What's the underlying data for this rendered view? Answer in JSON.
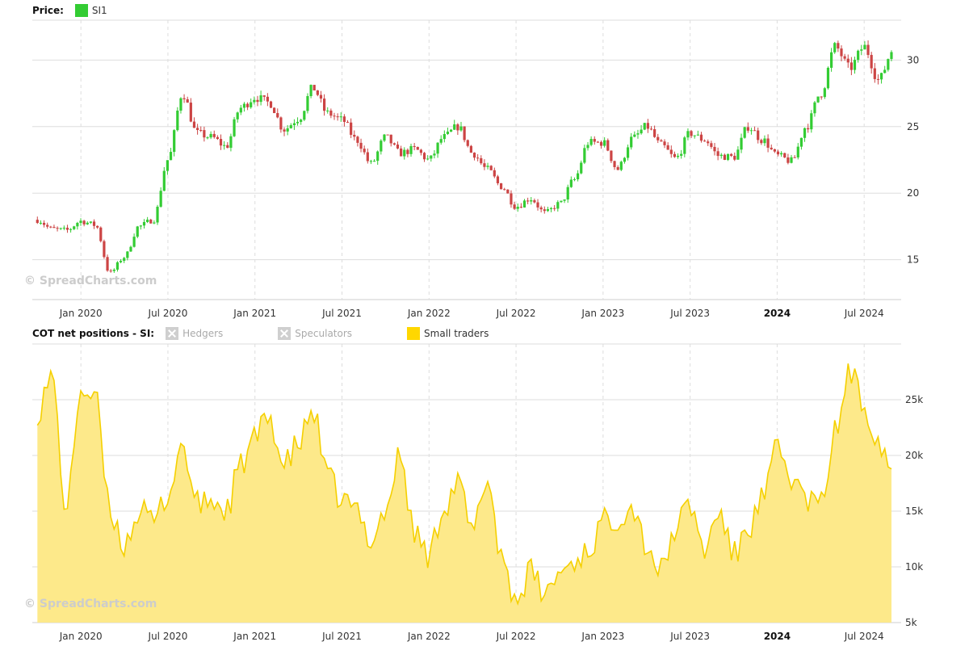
{
  "legend_top": {
    "title": "Price:",
    "series_label": "SI1",
    "series_color": "#33cc33"
  },
  "legend_bottom": {
    "title": "COT net positions - SI:",
    "items": [
      {
        "label": "Hedgers",
        "enabled": false
      },
      {
        "label": "Speculators",
        "enabled": false
      },
      {
        "label": "Small traders",
        "enabled": true,
        "color": "#ffd700"
      }
    ]
  },
  "watermark": "© SpreadCharts.com",
  "colors": {
    "up": "#33cc33",
    "down": "#cc4444",
    "area_fill": "#fde98a",
    "area_line": "#f5d000",
    "grid": "#dddddd"
  },
  "chart_data": [
    {
      "type": "candlestick",
      "title": "Price: SI1",
      "x_ticks": [
        {
          "date": "2020-01",
          "label": "Jan 2020"
        },
        {
          "date": "2020-07",
          "label": "Jul 2020"
        },
        {
          "date": "2021-01",
          "label": "Jan 2021"
        },
        {
          "date": "2021-07",
          "label": "Jul 2021"
        },
        {
          "date": "2022-01",
          "label": "Jan 2022"
        },
        {
          "date": "2022-07",
          "label": "Jul 2022"
        },
        {
          "date": "2023-01",
          "label": "Jan 2023"
        },
        {
          "date": "2023-07",
          "label": "Jul 2023"
        },
        {
          "date": "2024-01",
          "label": "2024",
          "bold": true
        },
        {
          "date": "2024-07",
          "label": "Jul 2024"
        }
      ],
      "x_range": [
        "2019-10",
        "2024-09"
      ],
      "y_range": [
        12,
        33
      ],
      "y_ticks": [
        15,
        20,
        25,
        30
      ],
      "grid": true,
      "closes": [
        {
          "date": "2019-10",
          "value": 18.0
        },
        {
          "date": "2019-11",
          "value": 17.3
        },
        {
          "date": "2019-12",
          "value": 17.2
        },
        {
          "date": "2020-01",
          "value": 17.9
        },
        {
          "date": "2020-02",
          "value": 17.6
        },
        {
          "date": "2020-03",
          "value": 14.0
        },
        {
          "date": "2020-04",
          "value": 15.2
        },
        {
          "date": "2020-05",
          "value": 17.5
        },
        {
          "date": "2020-06",
          "value": 18.0
        },
        {
          "date": "2020-07",
          "value": 22.5
        },
        {
          "date": "2020-08",
          "value": 27.5
        },
        {
          "date": "2020-09",
          "value": 24.5
        },
        {
          "date": "2020-10",
          "value": 24.2
        },
        {
          "date": "2020-11",
          "value": 23.5
        },
        {
          "date": "2020-12",
          "value": 26.4
        },
        {
          "date": "2021-01",
          "value": 27.2
        },
        {
          "date": "2021-02",
          "value": 26.8
        },
        {
          "date": "2021-03",
          "value": 24.8
        },
        {
          "date": "2021-04",
          "value": 25.6
        },
        {
          "date": "2021-05",
          "value": 27.9
        },
        {
          "date": "2021-06",
          "value": 26.0
        },
        {
          "date": "2021-07",
          "value": 25.5
        },
        {
          "date": "2021-08",
          "value": 24.0
        },
        {
          "date": "2021-09",
          "value": 22.2
        },
        {
          "date": "2021-10",
          "value": 24.2
        },
        {
          "date": "2021-11",
          "value": 23.0
        },
        {
          "date": "2021-12",
          "value": 23.3
        },
        {
          "date": "2022-01",
          "value": 22.5
        },
        {
          "date": "2022-02",
          "value": 24.2
        },
        {
          "date": "2022-03",
          "value": 25.0
        },
        {
          "date": "2022-04",
          "value": 23.0
        },
        {
          "date": "2022-05",
          "value": 21.8
        },
        {
          "date": "2022-06",
          "value": 20.5
        },
        {
          "date": "2022-07",
          "value": 19.0
        },
        {
          "date": "2022-08",
          "value": 19.6
        },
        {
          "date": "2022-09",
          "value": 18.5
        },
        {
          "date": "2022-10",
          "value": 19.2
        },
        {
          "date": "2022-11",
          "value": 21.0
        },
        {
          "date": "2022-12",
          "value": 23.8
        },
        {
          "date": "2023-01",
          "value": 23.8
        },
        {
          "date": "2023-02",
          "value": 21.8
        },
        {
          "date": "2023-03",
          "value": 24.1
        },
        {
          "date": "2023-04",
          "value": 25.0
        },
        {
          "date": "2023-05",
          "value": 23.6
        },
        {
          "date": "2023-06",
          "value": 22.6
        },
        {
          "date": "2023-07",
          "value": 24.5
        },
        {
          "date": "2023-08",
          "value": 24.0
        },
        {
          "date": "2023-09",
          "value": 22.8
        },
        {
          "date": "2023-10",
          "value": 22.7
        },
        {
          "date": "2023-11",
          "value": 25.0
        },
        {
          "date": "2023-12",
          "value": 24.0
        },
        {
          "date": "2024-01",
          "value": 22.8
        },
        {
          "date": "2024-02",
          "value": 22.4
        },
        {
          "date": "2024-03",
          "value": 25.0
        },
        {
          "date": "2024-04",
          "value": 27.5
        },
        {
          "date": "2024-05",
          "value": 31.0
        },
        {
          "date": "2024-06",
          "value": 29.4
        },
        {
          "date": "2024-07",
          "value": 31.0
        },
        {
          "date": "2024-08",
          "value": 28.5
        },
        {
          "date": "2024-09",
          "value": 30.8
        }
      ]
    },
    {
      "type": "area",
      "title": "COT net positions - SI: Small traders",
      "series_name": "Small traders",
      "y_range": [
        5000,
        30000
      ],
      "y_ticks": [
        {
          "value": 5000,
          "label": "5k"
        },
        {
          "value": 10000,
          "label": "10k"
        },
        {
          "value": 15000,
          "label": "15k"
        },
        {
          "value": 20000,
          "label": "20k"
        },
        {
          "value": 25000,
          "label": "25k"
        }
      ],
      "grid": true,
      "points": [
        {
          "date": "2019-10",
          "value": 24000
        },
        {
          "date": "2019-11",
          "value": 27000
        },
        {
          "date": "2019-12",
          "value": 15000
        },
        {
          "date": "2020-01",
          "value": 26000
        },
        {
          "date": "2020-02",
          "value": 25000
        },
        {
          "date": "2020-03",
          "value": 15000
        },
        {
          "date": "2020-04",
          "value": 12000
        },
        {
          "date": "2020-05",
          "value": 15000
        },
        {
          "date": "2020-06",
          "value": 14000
        },
        {
          "date": "2020-07",
          "value": 16500
        },
        {
          "date": "2020-08",
          "value": 21000
        },
        {
          "date": "2020-09",
          "value": 15500
        },
        {
          "date": "2020-10",
          "value": 16000
        },
        {
          "date": "2020-11",
          "value": 15000
        },
        {
          "date": "2020-12",
          "value": 19000
        },
        {
          "date": "2021-01",
          "value": 21500
        },
        {
          "date": "2021-02",
          "value": 23500
        },
        {
          "date": "2021-03",
          "value": 19000
        },
        {
          "date": "2021-04",
          "value": 21000
        },
        {
          "date": "2021-05",
          "value": 24000
        },
        {
          "date": "2021-06",
          "value": 18000
        },
        {
          "date": "2021-07",
          "value": 16000
        },
        {
          "date": "2021-08",
          "value": 15000
        },
        {
          "date": "2021-09",
          "value": 12500
        },
        {
          "date": "2021-10",
          "value": 15000
        },
        {
          "date": "2021-11",
          "value": 20000
        },
        {
          "date": "2021-12",
          "value": 13000
        },
        {
          "date": "2022-01",
          "value": 11000
        },
        {
          "date": "2022-02",
          "value": 15500
        },
        {
          "date": "2022-03",
          "value": 17500
        },
        {
          "date": "2022-04",
          "value": 13000
        },
        {
          "date": "2022-05",
          "value": 18000
        },
        {
          "date": "2022-06",
          "value": 11000
        },
        {
          "date": "2022-07",
          "value": 7000
        },
        {
          "date": "2022-08",
          "value": 9500
        },
        {
          "date": "2022-09",
          "value": 7500
        },
        {
          "date": "2022-10",
          "value": 9500
        },
        {
          "date": "2022-11",
          "value": 10500
        },
        {
          "date": "2022-12",
          "value": 11500
        },
        {
          "date": "2023-01",
          "value": 14000
        },
        {
          "date": "2023-02",
          "value": 14500
        },
        {
          "date": "2023-03",
          "value": 15500
        },
        {
          "date": "2023-04",
          "value": 12000
        },
        {
          "date": "2023-05",
          "value": 9500
        },
        {
          "date": "2023-06",
          "value": 13500
        },
        {
          "date": "2023-07",
          "value": 15500
        },
        {
          "date": "2023-08",
          "value": 11500
        },
        {
          "date": "2023-09",
          "value": 15000
        },
        {
          "date": "2023-10",
          "value": 11000
        },
        {
          "date": "2023-11",
          "value": 13500
        },
        {
          "date": "2023-12",
          "value": 16000
        },
        {
          "date": "2024-01",
          "value": 20500
        },
        {
          "date": "2024-02",
          "value": 18000
        },
        {
          "date": "2024-03",
          "value": 16000
        },
        {
          "date": "2024-04",
          "value": 15500
        },
        {
          "date": "2024-05",
          "value": 22000
        },
        {
          "date": "2024-06",
          "value": 27500
        },
        {
          "date": "2024-07",
          "value": 24500
        },
        {
          "date": "2024-08",
          "value": 21500
        },
        {
          "date": "2024-09",
          "value": 18500
        }
      ]
    }
  ]
}
